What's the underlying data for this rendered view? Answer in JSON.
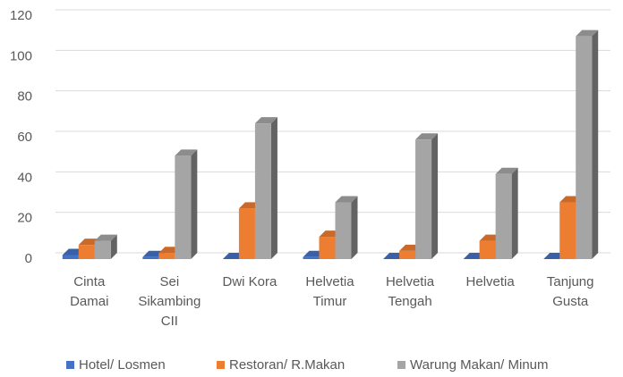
{
  "chart_data": {
    "type": "bar3d",
    "categories": [
      "Cinta\nDamai",
      "Sei\nSikambing\nCII",
      "Dwi Kora",
      "Helvetia\nTimur",
      "Helvetia\nTengah",
      "Helvetia",
      "Tanjung\nGusta"
    ],
    "series": [
      {
        "name": "Hotel/ Losmen",
        "color": "#4472c4",
        "values": [
          2,
          1,
          0,
          1,
          0,
          0,
          0
        ]
      },
      {
        "name": "Restoran/ R.Makan",
        "color": "#ed7d31",
        "values": [
          7,
          3,
          25,
          11,
          4,
          9,
          28
        ]
      },
      {
        "name": "Warung Makan/ Minum",
        "color": "#a5a5a5",
        "values": [
          9,
          51,
          67,
          28,
          59,
          42,
          110
        ]
      }
    ],
    "ylim": [
      0,
      120
    ],
    "yticks": [
      0,
      20,
      40,
      60,
      80,
      100,
      120
    ],
    "grid": true,
    "legend": "bottom"
  }
}
